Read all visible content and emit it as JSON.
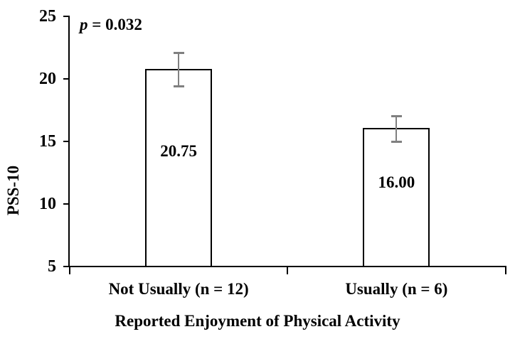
{
  "annotation": {
    "symbol": "p",
    "rest": " = 0.032"
  },
  "chart_data": {
    "type": "bar",
    "title": "",
    "xlabel": "Reported Enjoyment of Physical Activity",
    "ylabel": "PSS-10",
    "categories": [
      "Not Usually (n = 12)",
      "Usually (n = 6)"
    ],
    "values": [
      20.75,
      16.0
    ],
    "value_labels": [
      "20.75",
      "16.00"
    ],
    "errors": [
      1.35,
      1.0
    ],
    "annotation": "p = 0.032",
    "ylim": [
      5,
      25
    ],
    "yticks": [
      5,
      10,
      15,
      20,
      25
    ],
    "grid": false,
    "legend": false,
    "value_label_y": [
      14.2,
      11.7
    ],
    "colors": {
      "bar_fill": "#ffffff",
      "bar_border": "#000000",
      "error_bar": "#808080",
      "axis": "#000000",
      "text": "#000000",
      "background": "#ffffff"
    }
  }
}
